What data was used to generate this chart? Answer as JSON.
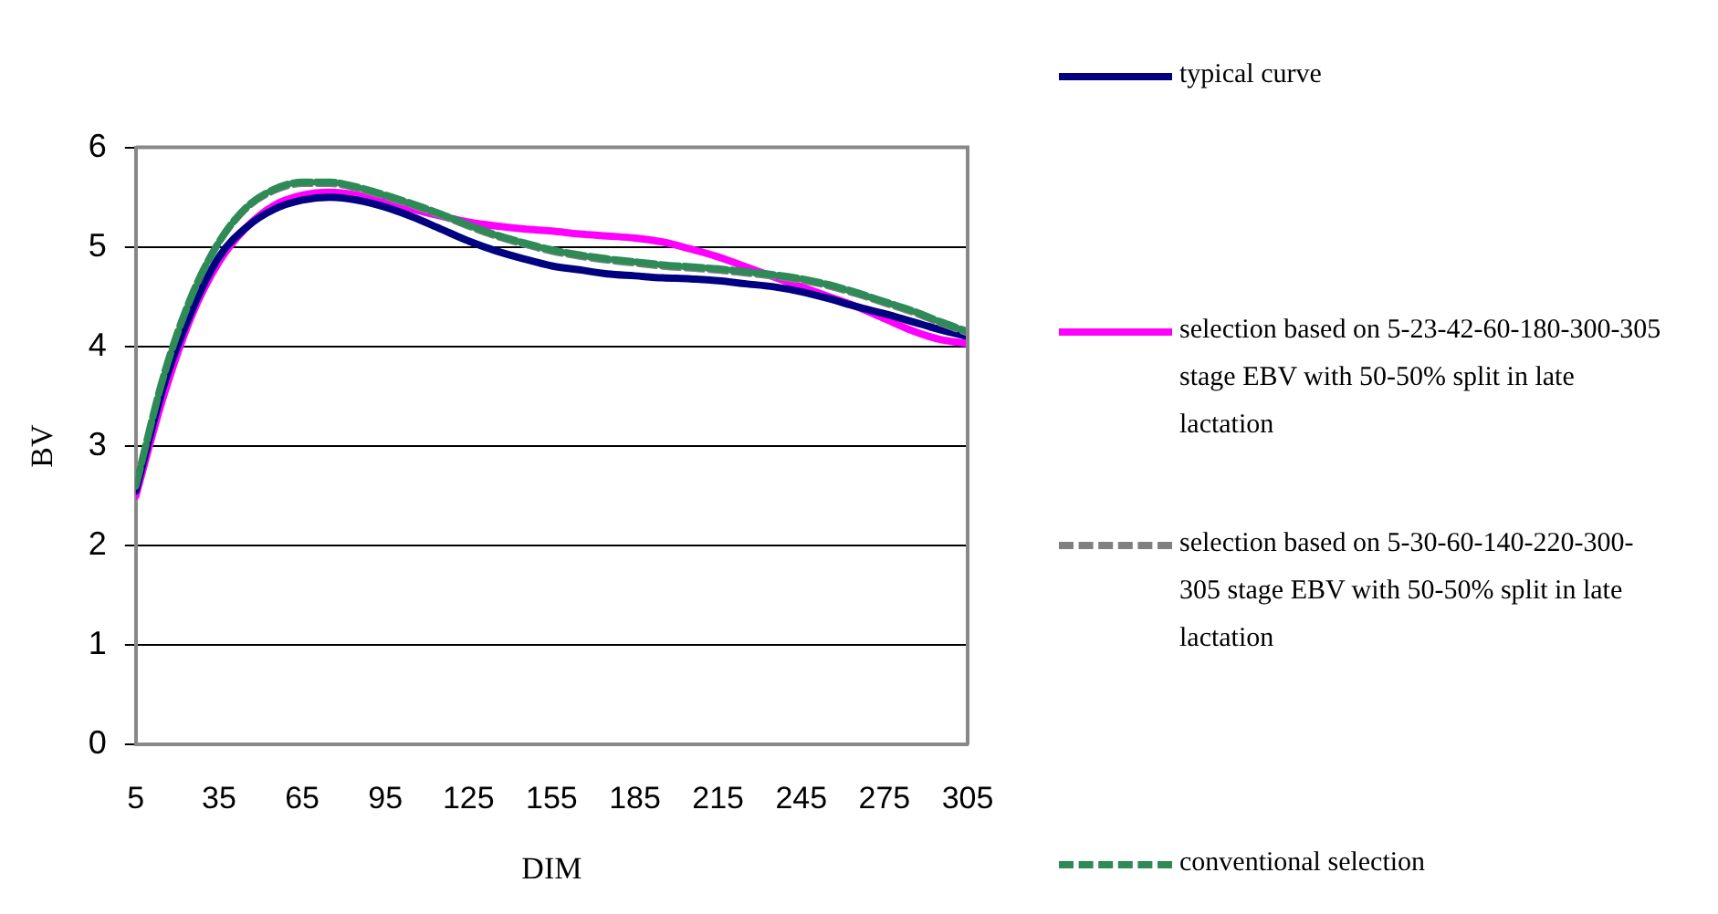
{
  "chart_data": {
    "type": "line",
    "xlabel": "DIM",
    "ylabel": "BV",
    "xlim": [
      5,
      305
    ],
    "xticks": [
      5,
      35,
      65,
      95,
      125,
      155,
      185,
      215,
      245,
      275,
      305
    ],
    "ylim": [
      0,
      6
    ],
    "yticks": [
      0,
      1,
      2,
      3,
      4,
      5,
      6
    ],
    "grid": "y",
    "legend": "right",
    "marker": "none",
    "x": [
      5,
      15,
      25,
      35,
      45,
      55,
      65,
      75,
      85,
      95,
      105,
      115,
      125,
      135,
      145,
      155,
      165,
      175,
      185,
      195,
      205,
      215,
      225,
      235,
      245,
      255,
      265,
      275,
      285,
      295,
      305
    ],
    "series": [
      {
        "name": "typical curve",
        "color": "#000080",
        "line_style": "solid",
        "values": [
          2.55,
          3.6,
          4.35,
          4.9,
          5.2,
          5.38,
          5.47,
          5.5,
          5.47,
          5.4,
          5.3,
          5.18,
          5.06,
          4.96,
          4.88,
          4.81,
          4.77,
          4.73,
          4.71,
          4.69,
          4.68,
          4.66,
          4.63,
          4.6,
          4.55,
          4.48,
          4.4,
          4.33,
          4.25,
          4.17,
          4.1
        ]
      },
      {
        "name": "selection based on 5-23-42-60-180-300-305 stage EBV with 50-50% split in late lactation",
        "color": "#ff00ff",
        "line_style": "solid",
        "values": [
          2.5,
          3.5,
          4.3,
          4.85,
          5.2,
          5.42,
          5.52,
          5.55,
          5.52,
          5.46,
          5.38,
          5.31,
          5.25,
          5.21,
          5.18,
          5.16,
          5.13,
          5.11,
          5.09,
          5.05,
          4.98,
          4.9,
          4.8,
          4.7,
          4.6,
          4.5,
          4.4,
          4.28,
          4.16,
          4.07,
          4.03
        ]
      },
      {
        "name": "selection based on  5-30-60-140-220-300-305 stage EBV with 50-50% split in late lactation",
        "color": "#808080",
        "line_style": "dashed",
        "values": [
          2.58,
          3.68,
          4.48,
          5.02,
          5.37,
          5.55,
          5.62,
          5.62,
          5.57,
          5.49,
          5.4,
          5.3,
          5.19,
          5.09,
          5.01,
          4.94,
          4.89,
          4.85,
          4.82,
          4.79,
          4.77,
          4.75,
          4.72,
          4.69,
          4.65,
          4.59,
          4.51,
          4.42,
          4.33,
          4.22,
          4.12
        ]
      },
      {
        "name": "conventional selection",
        "color": "#2e8b57",
        "line_style": "dashed",
        "values": [
          2.6,
          3.7,
          4.5,
          5.05,
          5.4,
          5.58,
          5.65,
          5.65,
          5.6,
          5.52,
          5.43,
          5.33,
          5.22,
          5.12,
          5.04,
          4.97,
          4.92,
          4.88,
          4.85,
          4.82,
          4.8,
          4.78,
          4.75,
          4.72,
          4.68,
          4.62,
          4.54,
          4.45,
          4.36,
          4.25,
          4.15
        ]
      }
    ]
  }
}
